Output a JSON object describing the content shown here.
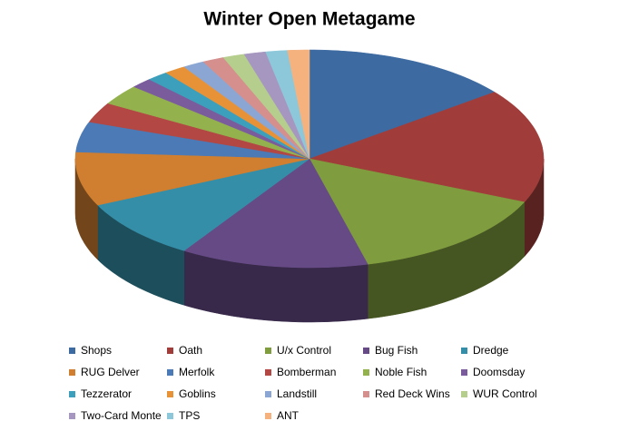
{
  "chart_data": {
    "type": "pie3d",
    "title": "Winter Open Metagame",
    "categories": [
      "Shops",
      "Oath",
      "U/x Control",
      "Bug Fish",
      "Dredge",
      "RUG Delver",
      "Merfolk",
      "Bomberman",
      "Noble Fish",
      "Doomsday",
      "Tezzerator",
      "Goblins",
      "Landstill",
      "Red Deck Wins",
      "WUR Control",
      "Two-Card Monte",
      "TPS",
      "ANT"
    ],
    "values": [
      14.5,
      17,
      14.5,
      13,
      9,
      8,
      4.5,
      3,
      3,
      1.5,
      1.5,
      1.5,
      1.5,
      1.5,
      1.5,
      1.5,
      1.5,
      1.5
    ],
    "colors": [
      "#3d6aa1",
      "#a03d3a",
      "#7f9c3e",
      "#664a86",
      "#358ea8",
      "#d07e2f",
      "#4b7ab6",
      "#b24744",
      "#93b24e",
      "#7a5b9c",
      "#3ca0bc",
      "#e89237",
      "#8ba6d2",
      "#d58f8d",
      "#b5cd8d",
      "#a697c0",
      "#8dc8da",
      "#f5b27f"
    ],
    "legend": "bottom"
  }
}
